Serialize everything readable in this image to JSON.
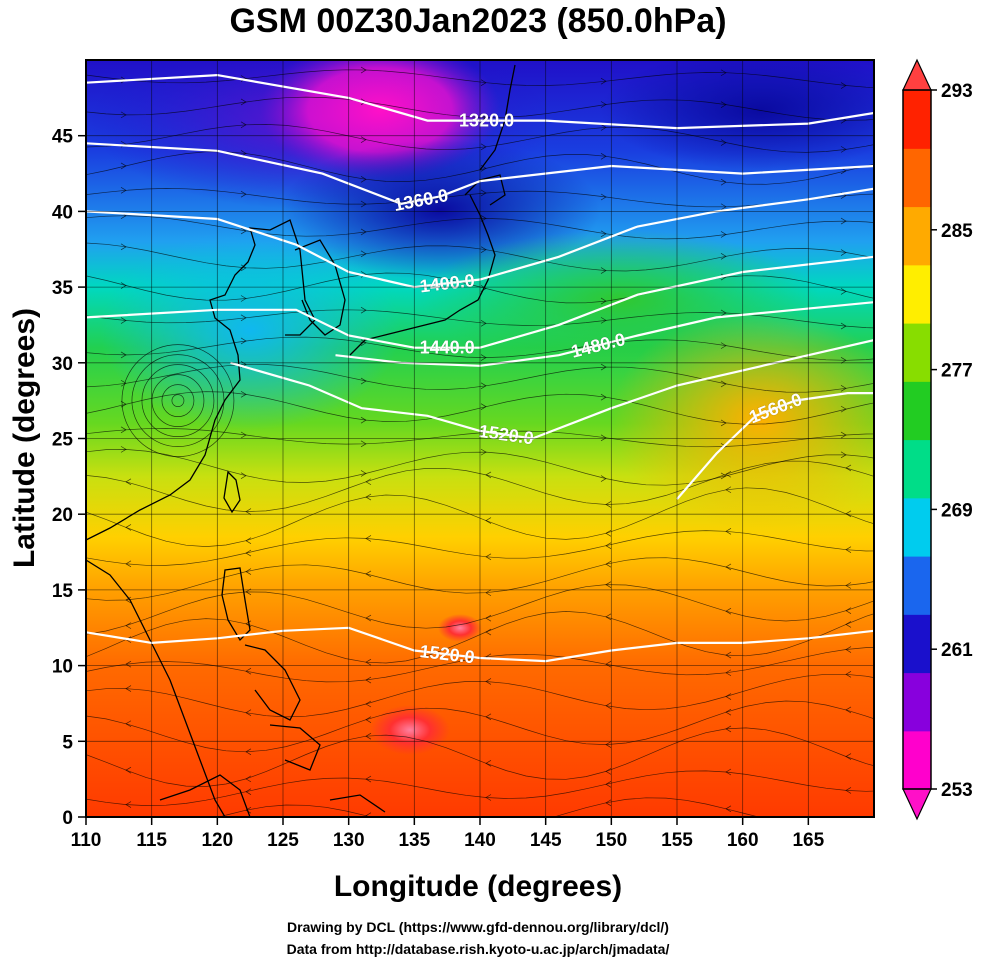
{
  "figure": {
    "title": "GSM 00Z30Jan2023 (850.0hPa)",
    "xlabel": "Longitude (degrees)",
    "ylabel": "Latitude  (degrees)",
    "credits": [
      "Drawing by DCL (https://www.gfd-dennou.org/library/dcl/)",
      "Data from http://database.rish.kyoto-u.ac.jp/arch/jmadata/"
    ]
  },
  "chart_data": {
    "type": "heatmap",
    "title": "GSM 00Z30Jan2023 (850.0hPa)",
    "xlabel": "Longitude (degrees)",
    "ylabel": "Latitude  (degrees)",
    "xlim": [
      110,
      170
    ],
    "ylim": [
      0,
      50
    ],
    "xticks": [
      "110",
      "115",
      "120",
      "125",
      "130",
      "135",
      "140",
      "145",
      "150",
      "155",
      "160",
      "165"
    ],
    "yticks": [
      "0",
      "5",
      "10",
      "15",
      "20",
      "25",
      "30",
      "35",
      "40",
      "45"
    ],
    "grid": true,
    "colorbar": {
      "min": 253,
      "max": 293,
      "ticks": [
        "253",
        "261",
        "269",
        "277",
        "285",
        "293"
      ],
      "extend": "both",
      "colors": [
        "#ff00cc",
        "#8800dd",
        "#1a10cc",
        "#1a66ee",
        "#00ccee",
        "#00dd88",
        "#22cc22",
        "#88dd00",
        "#ffee00",
        "#ffaa00",
        "#ff6600",
        "#ff2200"
      ]
    },
    "contours": [
      {
        "label": "1320.0",
        "points": [
          [
            110,
            48.5
          ],
          [
            120,
            49
          ],
          [
            130,
            47.5
          ],
          [
            136,
            46
          ],
          [
            145,
            46
          ],
          [
            155,
            45.5
          ],
          [
            165,
            45.8
          ],
          [
            170,
            46.5
          ]
        ]
      },
      {
        "label": "1360.0",
        "points": [
          [
            110,
            44.5
          ],
          [
            120,
            44
          ],
          [
            128,
            42.5
          ],
          [
            134,
            40.5
          ],
          [
            137,
            41
          ],
          [
            140,
            42
          ],
          [
            150,
            43
          ],
          [
            160,
            42.5
          ],
          [
            170,
            43
          ]
        ]
      },
      {
        "label": "1400.0",
        "points": [
          [
            110,
            40
          ],
          [
            120,
            39.5
          ],
          [
            126,
            37.8
          ],
          [
            130,
            36
          ],
          [
            135,
            35
          ],
          [
            140,
            35.5
          ],
          [
            146,
            37
          ],
          [
            152,
            39
          ],
          [
            158,
            40
          ],
          [
            165,
            40.8
          ],
          [
            170,
            41.5
          ]
        ]
      },
      {
        "label": "1440.0",
        "points": [
          [
            110,
            33
          ],
          [
            120,
            33.5
          ],
          [
            126,
            33.5
          ],
          [
            130,
            31.8
          ],
          [
            135,
            31
          ],
          [
            140,
            31
          ],
          [
            146,
            32.5
          ],
          [
            152,
            34.5
          ],
          [
            160,
            36
          ],
          [
            170,
            37
          ]
        ]
      },
      {
        "label": "1480.0",
        "points": [
          [
            129,
            30.5
          ],
          [
            134,
            30
          ],
          [
            140,
            29.8
          ],
          [
            146,
            30.5
          ],
          [
            152,
            31.8
          ],
          [
            158,
            33
          ],
          [
            164,
            33.5
          ],
          [
            170,
            34
          ]
        ]
      },
      {
        "label": "1520.0",
        "points": [
          [
            121,
            30
          ],
          [
            127,
            28.5
          ],
          [
            131,
            27
          ],
          [
            136,
            26.5
          ],
          [
            140,
            25.5
          ],
          [
            144,
            25
          ],
          [
            150,
            27
          ],
          [
            155,
            28.5
          ],
          [
            160,
            29.5
          ],
          [
            165,
            30.5
          ],
          [
            170,
            31.5
          ]
        ]
      },
      {
        "label": "1560.0",
        "points": [
          [
            155,
            21
          ],
          [
            158,
            24
          ],
          [
            161,
            26.5
          ],
          [
            164,
            27.5
          ],
          [
            168,
            28
          ],
          [
            170,
            28
          ]
        ]
      },
      {
        "label": "1520.0",
        "points": [
          [
            110,
            12.2
          ],
          [
            115,
            11.5
          ],
          [
            120,
            11.8
          ],
          [
            125,
            12.3
          ],
          [
            130,
            12.5
          ],
          [
            135,
            11
          ],
          [
            140,
            10.5
          ],
          [
            145,
            10.3
          ],
          [
            150,
            11
          ],
          [
            155,
            11.5
          ],
          [
            160,
            11.5
          ],
          [
            165,
            11.8
          ],
          [
            170,
            12.3
          ]
        ]
      }
    ]
  }
}
